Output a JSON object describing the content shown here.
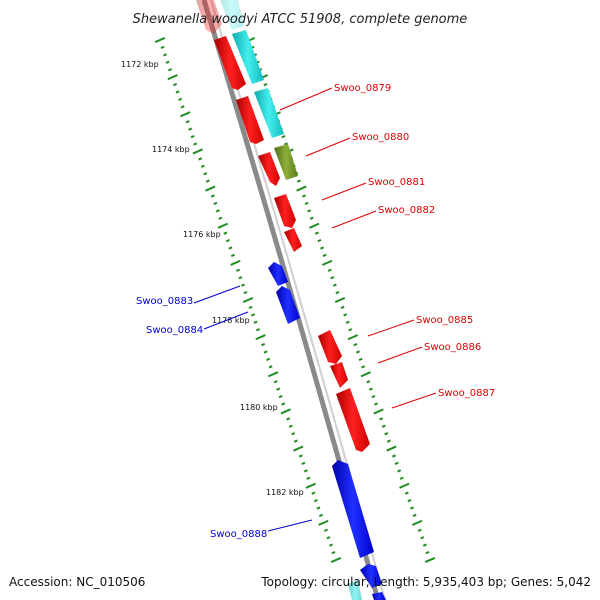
{
  "title": "Shewanella woodyi ATCC 51908, complete genome",
  "footer": {
    "accession": "Accession: NC_010506",
    "topology": "Topology: circular; Length: 5,935,403 bp; Genes: 5,042"
  },
  "ruler_labels": [
    "1172 kbp",
    "1174 kbp",
    "1176 kbp",
    "1178 kbp",
    "1180 kbp",
    "1182 kbp"
  ],
  "gene_labels": [
    {
      "text": "Swoo_0879",
      "color": "#dd0000"
    },
    {
      "text": "Swoo_0880",
      "color": "#dd0000"
    },
    {
      "text": "Swoo_0881",
      "color": "#dd0000"
    },
    {
      "text": "Swoo_0882",
      "color": "#dd0000"
    },
    {
      "text": "Swoo_0883",
      "color": "#0000cc"
    },
    {
      "text": "Swoo_0884",
      "color": "#0000cc"
    },
    {
      "text": "Swoo_0885",
      "color": "#dd0000"
    },
    {
      "text": "Swoo_0886",
      "color": "#dd0000"
    },
    {
      "text": "Swoo_0887",
      "color": "#dd0000"
    },
    {
      "text": "Swoo_0888",
      "color": "#0000cc"
    }
  ],
  "colors": {
    "forward_gene": "#ee0000",
    "reverse_gene": "#0000ee",
    "rna_gene": "#22cccc",
    "other_gene": "#6b8e23",
    "backbone": "#888888",
    "tick": "#228b22"
  }
}
